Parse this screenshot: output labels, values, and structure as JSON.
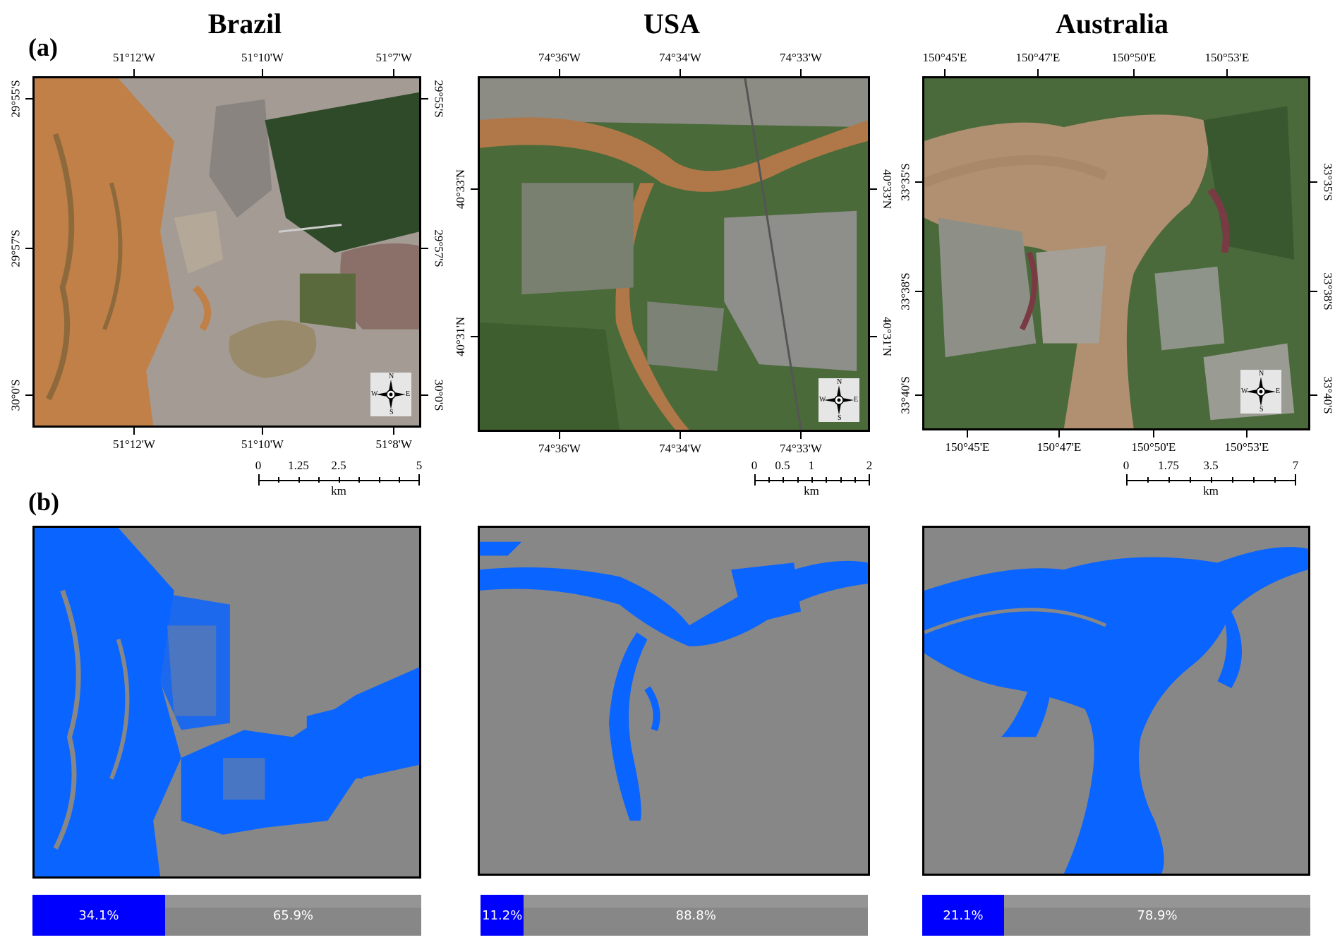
{
  "panel_labels": {
    "a": "(a)",
    "b": "(b)"
  },
  "columns": [
    {
      "title": "Brazil",
      "top_ticks": [
        "51°12'W",
        "51°10'W",
        "51°7'W"
      ],
      "bottom_ticks": [
        "51°12'W",
        "51°10'W",
        "51°8'W"
      ],
      "left_ticks": [
        "29°55'S",
        "29°57'S",
        "30°0'S"
      ],
      "right_ticks": [
        "29°55'S",
        "29°57'S",
        "30°0'S"
      ],
      "scale": {
        "labels": [
          "0",
          "1.25",
          "2.5",
          "5"
        ],
        "unit": "km"
      },
      "flood": {
        "flooded_pct": 34.1,
        "flooded_label": "34.1%",
        "dry_label": "65.9%"
      }
    },
    {
      "title": "USA",
      "top_ticks": [
        "74°36'W",
        "74°34'W",
        "74°33'W"
      ],
      "bottom_ticks": [
        "74°36'W",
        "74°34'W",
        "74°33'W"
      ],
      "left_ticks": [
        "40°33'N",
        "40°31'N"
      ],
      "right_ticks": [
        "40°33'N",
        "40°31'N"
      ],
      "scale": {
        "labels": [
          "0",
          "0.5",
          "1",
          "2"
        ],
        "unit": "km"
      },
      "flood": {
        "flooded_pct": 11.2,
        "flooded_label": "11.2%",
        "dry_label": "88.8%"
      }
    },
    {
      "title": "Australia",
      "top_ticks": [
        "150°45'E",
        "150°47'E",
        "150°50'E",
        "150°53'E"
      ],
      "bottom_ticks": [
        "150°45'E",
        "150°47'E",
        "150°50'E",
        "150°53'E"
      ],
      "left_ticks": [
        "33°35'S",
        "33°38'S",
        "33°40'S"
      ],
      "right_ticks": [
        "33°35'S",
        "33°38'S",
        "33°40'S"
      ],
      "scale": {
        "labels": [
          "0",
          "1.75",
          "3.5",
          "7"
        ],
        "unit": "km"
      },
      "flood": {
        "flooded_pct": 21.1,
        "flooded_label": "21.1%",
        "dry_label": "78.9%"
      }
    }
  ],
  "compass": {
    "n": "N",
    "s": "S",
    "e": "E",
    "w": "W"
  },
  "colors": {
    "flood_blue": "#0a64ff",
    "background_grey": "#878787",
    "bar_blue": "#0000ff",
    "bar_grey": "#8a8a8a",
    "sediment_water": "#c08048",
    "urban": "#a49c94",
    "vegetation": "#3e5a30"
  }
}
